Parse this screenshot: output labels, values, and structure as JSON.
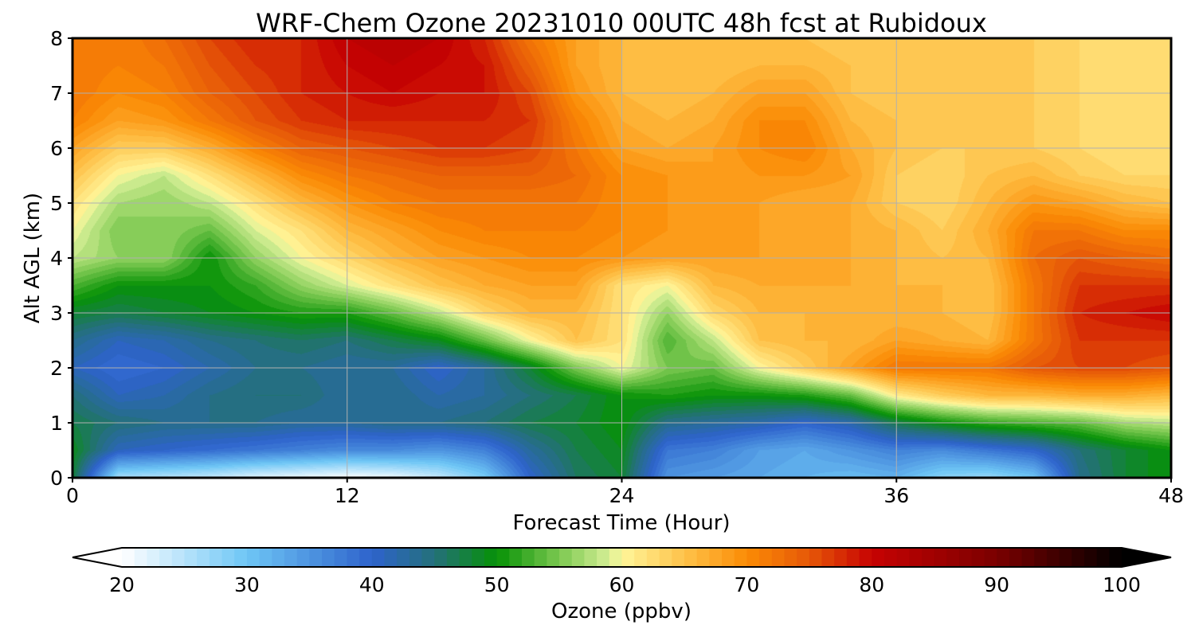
{
  "chart_data": {
    "type": "heatmap",
    "title": "WRF-Chem Ozone  20231010 00UTC 48h fcst at Rubidoux",
    "xlabel": "Forecast Time (Hour)",
    "ylabel": "Alt AGL (km)",
    "xlim": [
      0,
      48
    ],
    "ylim": [
      0,
      8
    ],
    "xticks": [
      0,
      12,
      24,
      36,
      48
    ],
    "yticks": [
      0,
      1,
      2,
      3,
      4,
      5,
      6,
      7,
      8
    ],
    "grid": true,
    "colorbar": {
      "label": "Ozone  (ppbv)",
      "range": [
        20,
        100
      ],
      "ticks": [
        20,
        30,
        40,
        50,
        60,
        70,
        80,
        90,
        100
      ],
      "extend": "both",
      "step": 1,
      "stops": [
        {
          "value": 20,
          "color": "#ffffff"
        },
        {
          "value": 30,
          "color": "#6ec6f5"
        },
        {
          "value": 40,
          "color": "#2e63cc"
        },
        {
          "value": 45,
          "color": "#24707a"
        },
        {
          "value": 50,
          "color": "#069106"
        },
        {
          "value": 55,
          "color": "#7cc850"
        },
        {
          "value": 59,
          "color": "#d5ef96"
        },
        {
          "value": 60,
          "color": "#fff69a"
        },
        {
          "value": 65,
          "color": "#fec24a"
        },
        {
          "value": 70,
          "color": "#fb8b05"
        },
        {
          "value": 75,
          "color": "#e65808"
        },
        {
          "value": 80,
          "color": "#c70202"
        },
        {
          "value": 90,
          "color": "#7a0000"
        },
        {
          "value": 100,
          "color": "#000000"
        }
      ]
    },
    "x": [
      0,
      2,
      4,
      6,
      8,
      10,
      12,
      14,
      16,
      18,
      20,
      22,
      24,
      26,
      28,
      30,
      32,
      34,
      36,
      38,
      40,
      42,
      44,
      46,
      48
    ],
    "y": [
      0,
      0.5,
      1,
      1.5,
      2,
      2.5,
      3,
      3.5,
      4,
      4.5,
      5,
      5.5,
      6,
      6.5,
      7,
      7.5,
      8
    ],
    "z": [
      [
        48,
        26,
        25,
        24,
        22,
        21,
        20,
        21,
        24,
        29,
        40,
        46,
        48,
        35,
        34,
        33,
        32,
        31,
        32,
        28,
        27,
        30,
        44,
        48,
        50
      ],
      [
        49,
        41,
        40,
        39,
        38,
        37,
        36,
        36,
        35,
        37,
        43,
        47,
        49,
        38,
        37,
        34,
        33,
        35,
        37,
        36,
        38,
        40,
        45,
        48,
        50
      ],
      [
        47,
        45,
        44,
        44,
        44,
        43,
        43,
        44,
        44,
        45,
        47,
        48,
        50,
        44,
        43,
        42,
        40,
        42,
        47,
        50,
        52,
        53,
        54,
        57,
        58
      ],
      [
        45,
        41,
        42,
        44,
        45,
        45,
        43,
        44,
        42,
        43,
        45,
        47,
        50,
        51,
        50,
        50,
        51,
        54,
        61,
        64,
        66,
        66,
        67,
        67,
        66
      ],
      [
        41,
        39,
        40,
        42,
        44,
        44,
        43,
        43,
        40,
        43,
        48,
        55,
        60,
        55,
        54,
        60,
        64,
        68,
        72,
        72,
        72,
        75,
        76,
        76,
        75
      ],
      [
        44,
        41,
        42,
        44,
        45,
        46,
        45,
        47,
        49,
        54,
        60,
        65,
        62,
        53,
        58,
        65,
        66,
        66,
        68,
        67,
        66,
        72,
        77,
        77,
        77
      ],
      [
        48,
        47,
        48,
        49,
        50,
        51,
        51,
        54,
        58,
        63,
        66,
        66,
        62,
        56,
        63,
        66,
        66,
        66,
        66,
        66,
        65,
        72,
        78,
        79,
        80
      ],
      [
        53,
        50,
        50,
        50,
        52,
        56,
        59,
        62,
        65,
        67,
        68,
        68,
        62,
        60,
        66,
        67,
        67,
        67,
        66,
        66,
        65,
        72,
        77,
        77,
        77
      ],
      [
        58,
        56,
        56,
        50,
        56,
        60,
        63,
        66,
        68,
        69,
        70,
        70,
        69,
        68,
        68,
        68,
        67,
        67,
        66,
        65,
        66,
        73,
        75,
        74,
        73
      ],
      [
        60,
        55,
        56,
        54,
        59,
        62,
        66,
        68,
        70,
        71,
        71,
        71,
        70,
        69,
        68,
        68,
        67,
        67,
        66,
        64,
        67,
        72,
        72,
        70,
        70
      ],
      [
        62,
        57,
        56,
        58,
        62,
        66,
        69,
        71,
        72,
        72,
        72,
        72,
        70,
        69,
        68,
        68,
        67,
        67,
        64,
        63,
        66,
        69,
        68,
        66,
        65
      ],
      [
        65,
        60,
        58,
        62,
        66,
        70,
        72,
        73,
        74,
        74,
        74,
        73,
        70,
        69,
        68,
        69,
        69,
        68,
        64,
        63,
        65,
        66,
        64,
        63,
        63
      ],
      [
        68,
        64,
        64,
        67,
        71,
        74,
        75,
        76,
        77,
        77,
        76,
        72,
        68,
        67,
        68,
        70,
        71,
        67,
        65,
        64,
        64,
        64,
        63,
        62,
        62
      ],
      [
        71,
        68,
        69,
        72,
        75,
        77,
        78,
        78,
        78,
        78,
        77,
        71,
        67,
        66,
        67,
        70,
        70,
        66,
        65,
        64,
        64,
        64,
        63,
        62,
        62
      ],
      [
        72,
        70,
        71,
        74,
        76,
        78,
        79,
        80,
        79,
        79,
        76,
        69,
        66,
        65,
        66,
        68,
        68,
        65,
        64,
        64,
        64,
        64,
        63,
        62,
        62
      ],
      [
        72,
        71,
        72,
        75,
        77,
        78,
        80,
        81,
        80,
        79,
        74,
        68,
        66,
        65,
        65,
        66,
        66,
        65,
        64,
        64,
        64,
        64,
        63,
        62,
        62
      ],
      [
        72,
        71,
        73,
        76,
        78,
        78,
        81,
        82,
        81,
        78,
        72,
        68,
        66,
        65,
        65,
        65,
        65,
        64,
        64,
        64,
        64,
        64,
        63,
        62,
        62
      ]
    ]
  }
}
